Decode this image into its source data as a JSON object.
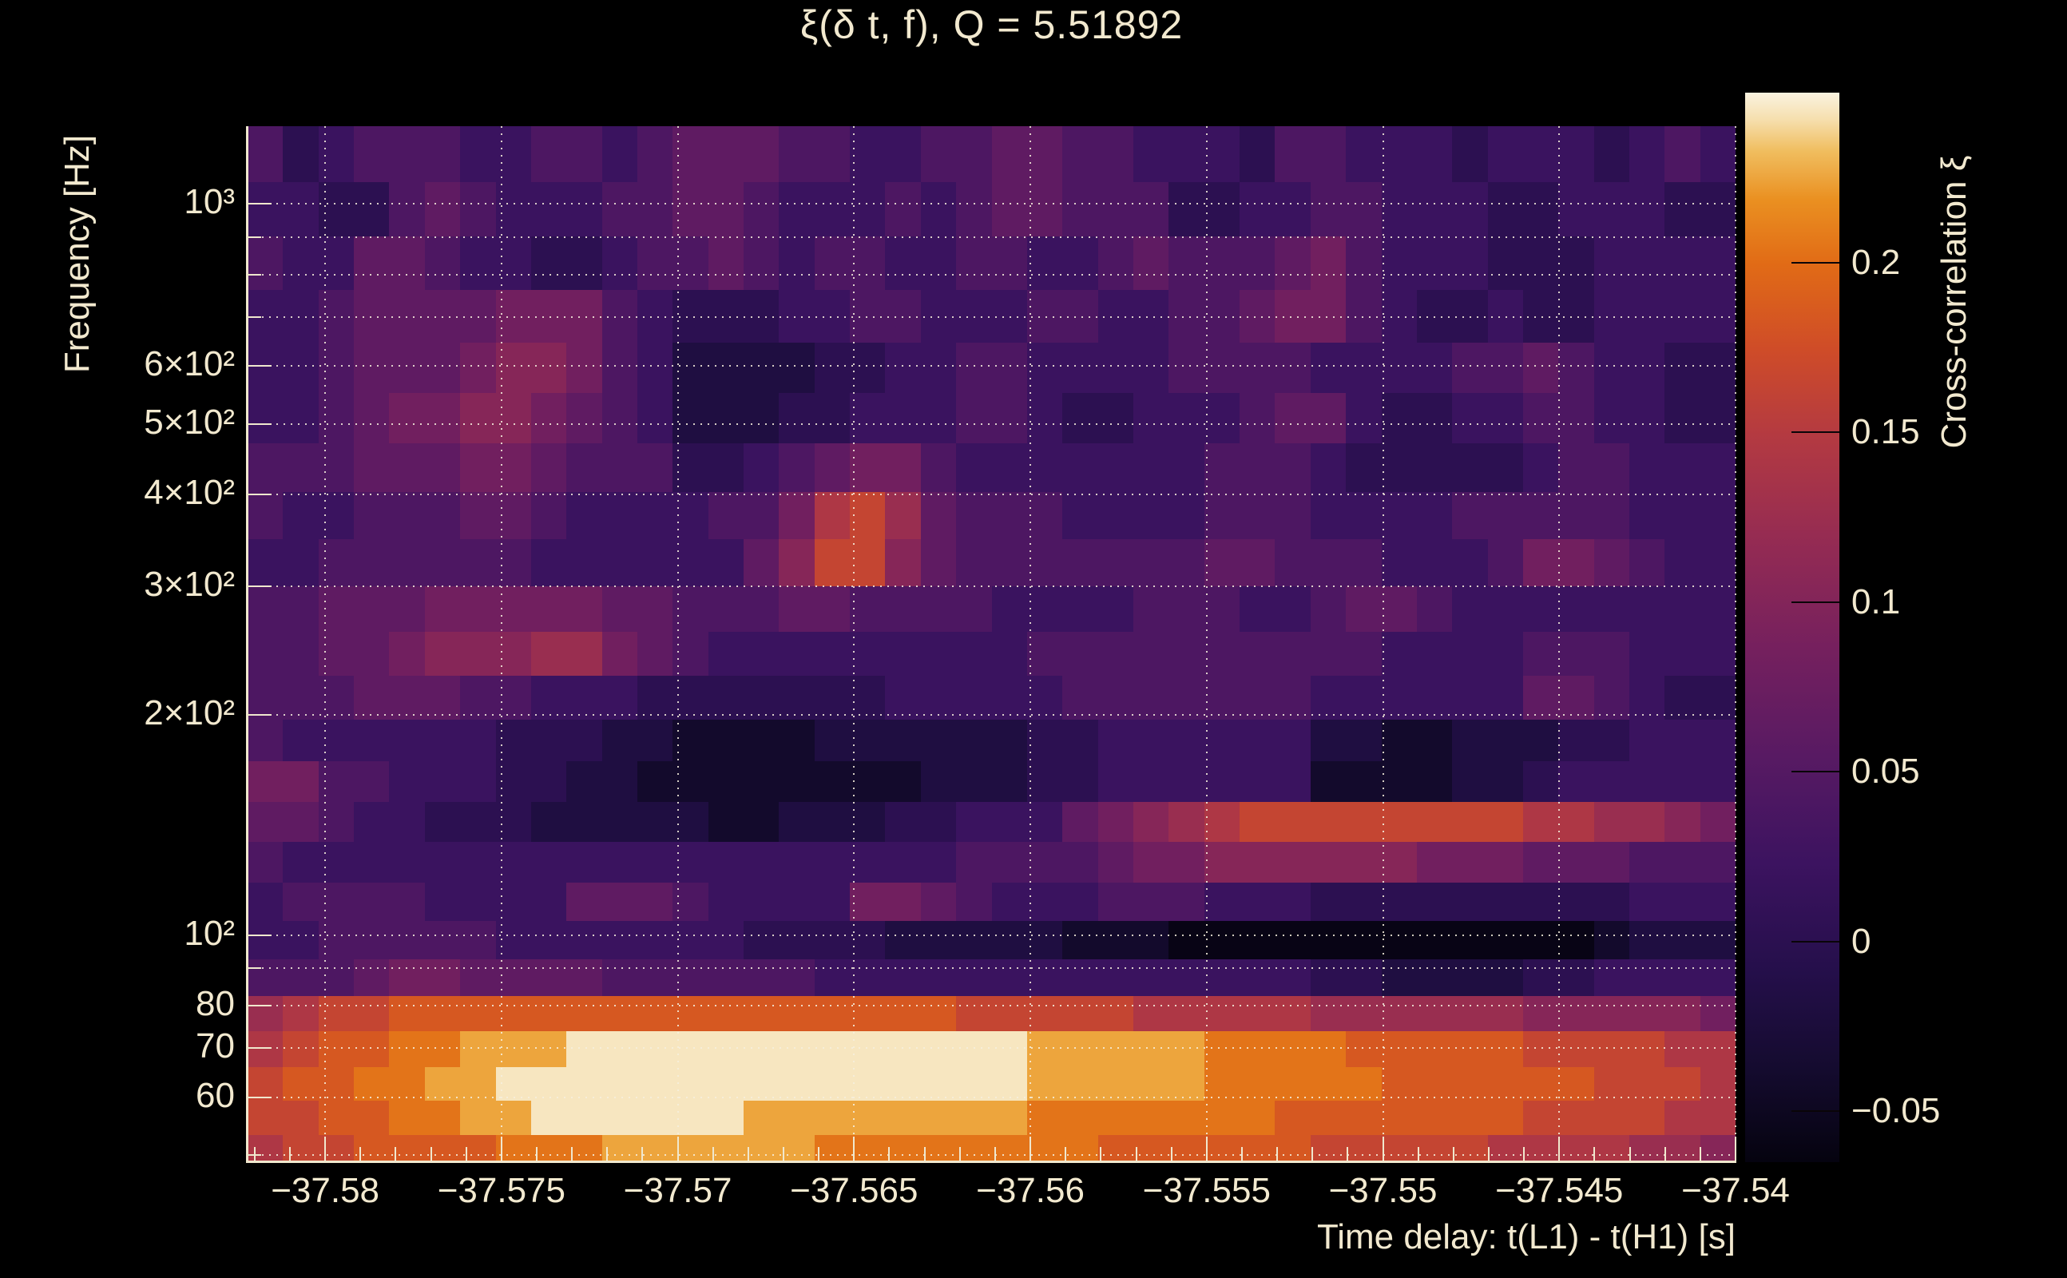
{
  "title": "ξ(δ t, f), Q = 5.51892",
  "colors": {
    "background": "#000000",
    "text": "#f2e9cf",
    "grid": "#f6efdd",
    "axis": "#f0e8ce"
  },
  "chart_data": {
    "type": "heatmap",
    "title": "ξ(δ t, f), Q = 5.51892",
    "xlabel": "Time delay: t(L1) - t(H1) [s]",
    "ylabel": "Frequency [Hz]",
    "zlabel": "Cross-correlation ξ",
    "q_value": "5.51892",
    "grid": true,
    "legend_position": "right-colorbar",
    "x_range": [
      -37.5822,
      -37.54
    ],
    "y_range_hz": [
      48.9,
      1277
    ],
    "z_range": [
      -0.065,
      0.25
    ],
    "x_scale": "linear",
    "y_scale": "log",
    "x_ticks": [
      {
        "value": -37.58,
        "label": "−37.58"
      },
      {
        "value": -37.575,
        "label": "−37.575"
      },
      {
        "value": -37.57,
        "label": "−37.57"
      },
      {
        "value": -37.565,
        "label": "−37.565"
      },
      {
        "value": -37.56,
        "label": "−37.56"
      },
      {
        "value": -37.555,
        "label": "−37.555"
      },
      {
        "value": -37.55,
        "label": "−37.55"
      },
      {
        "value": -37.545,
        "label": "−37.545"
      },
      {
        "value": -37.54,
        "label": "−37.54"
      }
    ],
    "x_minor_step": 0.001,
    "y_ticks": [
      {
        "value": 1000,
        "label": "10³"
      },
      {
        "value": 600,
        "label": "6×10²"
      },
      {
        "value": 500,
        "label": "5×10²"
      },
      {
        "value": 400,
        "label": "4×10²"
      },
      {
        "value": 300,
        "label": "3×10²"
      },
      {
        "value": 200,
        "label": "2×10²"
      },
      {
        "value": 100,
        "label": "10²"
      },
      {
        "value": 80,
        "label": "80"
      },
      {
        "value": 70,
        "label": "70"
      },
      {
        "value": 60,
        "label": "60"
      }
    ],
    "y_grid_hz": [
      1000,
      900,
      800,
      700,
      600,
      500,
      400,
      300,
      200,
      100,
      90,
      80,
      70,
      60,
      50
    ],
    "colorbar_ticks": [
      {
        "value": 0.2,
        "label": "0.2"
      },
      {
        "value": 0.15,
        "label": "0.15"
      },
      {
        "value": 0.1,
        "label": "0.1"
      },
      {
        "value": 0.05,
        "label": "0.05"
      },
      {
        "value": 0,
        "label": "0"
      },
      {
        "value": -0.05,
        "label": "−0.05"
      }
    ],
    "colormap_stops": [
      [
        0.0,
        "#05030f"
      ],
      [
        0.085,
        "#140b2e"
      ],
      [
        0.18,
        "#250f4b"
      ],
      [
        0.28,
        "#3c1360"
      ],
      [
        0.38,
        "#581a63"
      ],
      [
        0.48,
        "#75205e"
      ],
      [
        0.58,
        "#942b53"
      ],
      [
        0.68,
        "#b43a41"
      ],
      [
        0.76,
        "#cf4c28"
      ],
      [
        0.84,
        "#e16b16"
      ],
      [
        0.9,
        "#ea9021"
      ],
      [
        0.945,
        "#f0bd5e"
      ],
      [
        0.975,
        "#f6dfae"
      ],
      [
        1.0,
        "#faf3e0"
      ]
    ],
    "n_time_bins": 42,
    "time_bin_width_s": 0.0010048,
    "freq_edges_hz": [
      1277,
      1070,
      902,
      762,
      646,
      551,
      471,
      404,
      348,
      300,
      260,
      226,
      197,
      173,
      152,
      134,
      118,
      104.5,
      92.7,
      82.6,
      73.8,
      66,
      59.3,
      53.3,
      48.9
    ],
    "encoding_levels_xi": [
      -0.06,
      -0.04,
      -0.019,
      0.001,
      0.021,
      0.042,
      0.062,
      0.082,
      0.103,
      0.123,
      0.143,
      0.164,
      0.184,
      0.204,
      0.225,
      0.245
    ],
    "values_encoded": [
      "534555445545666554455665544435544434443454",
      "443356544455665444545665553344554443344433",
      "544665443345565455445544565556754443334444",
      "445666677754333445544455445567754334334444",
      "445666788754222233445544445555444455654433",
      "445677887654222334445543344456643344554433",
      "555666776555334567754444444555433333455444",
      "5445556654444557ab965554444555444455555444",
      "4455555544444468bb865555555665554445776544",
      "556667777766555665555444455544566544444444",
      "556678889976544444444455555555554444555444",
      "555666554443333333444445555555444444665433",
      "544444433322111122222233444444221122233444",
      "775544433221111111122233444444111122344444",
      "665443332222211222334446789abbbbbbbbaa9987",
      "544444444444444444445555677888888777666555",
      "455554444666544447765444555444333333333444",
      "445555544444443333222221110000000000001222",
      "555677666655555544444444444444332222334444",
      "9abbccccccccccccccccbbbbbaaaaa999999888887",
      "abccddeeefffffffffffffeeeeeddddcccccbbbbaa9",
      "bccddeefffffffffffffffeeeeedddddccccccbbba",
      "bbccddeeffffffeeeeeeeedddddddcccccccbbbbaa",
      "abbccccdddeeeeeeddddddddccccccbbbbbaaaa998"
    ]
  }
}
